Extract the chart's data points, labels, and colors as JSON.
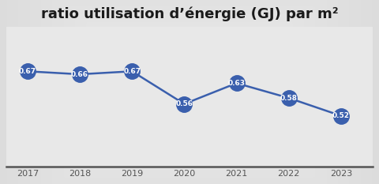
{
  "title": "ratio utilisation d’énergie (GJ) par m²",
  "years": [
    2017,
    2018,
    2019,
    2020,
    2021,
    2022,
    2023
  ],
  "values": [
    0.67,
    0.66,
    0.67,
    0.56,
    0.63,
    0.58,
    0.52
  ],
  "line_color": "#3a5fad",
  "marker_color": "#3a5fad",
  "marker_size": 14,
  "line_width": 1.8,
  "label_color": "#ffffff",
  "label_fontsize": 6.5,
  "title_fontsize": 13,
  "background_color_top": "#d8d8d8",
  "background_color_mid": "#ebebeb",
  "background_color_bot": "#d8d8d8",
  "grid_color": "#c8c8c8",
  "spine_color": "#555555",
  "tick_color": "#555555",
  "ylim": [
    0.35,
    0.82
  ],
  "xlim_left": 2016.6,
  "xlim_right": 2023.6
}
